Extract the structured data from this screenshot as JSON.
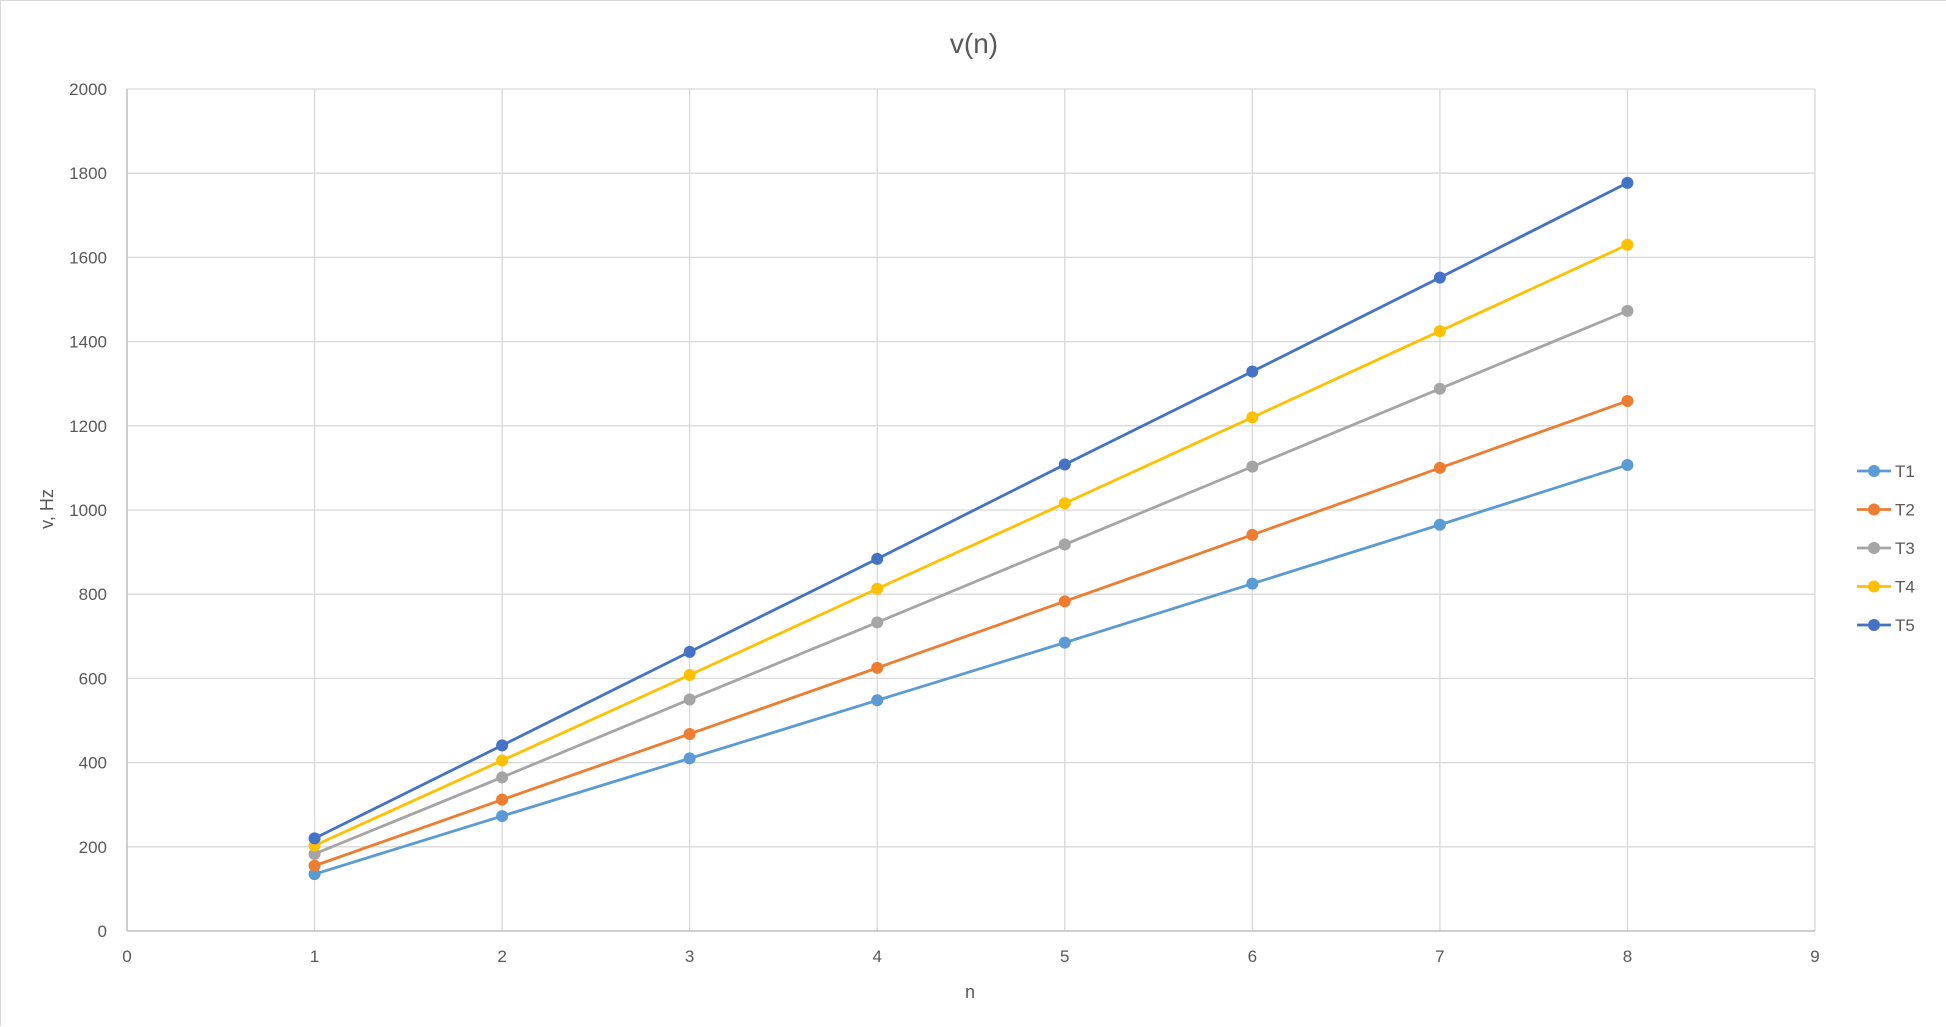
{
  "chart_data": {
    "type": "line",
    "title": "v(n)",
    "xlabel": "n",
    "ylabel": "v, Hz",
    "xlim": [
      0,
      9
    ],
    "ylim": [
      0,
      2000
    ],
    "x_ticks": [
      0,
      1,
      2,
      3,
      4,
      5,
      6,
      7,
      8,
      9
    ],
    "y_ticks": [
      0,
      200,
      400,
      600,
      800,
      1000,
      1200,
      1400,
      1600,
      1800,
      2000
    ],
    "grid": true,
    "legend_position": "right",
    "markers": "circle",
    "x": [
      1,
      2,
      3,
      4,
      5,
      6,
      7,
      8
    ],
    "series": [
      {
        "name": "T1",
        "color": "#5b9bd5",
        "values": [
          135,
          273,
          410,
          548,
          685,
          825,
          965,
          1107
        ]
      },
      {
        "name": "T2",
        "color": "#ed7d31",
        "values": [
          155,
          312,
          468,
          625,
          783,
          941,
          1100,
          1259
        ]
      },
      {
        "name": "T3",
        "color": "#a5a5a5",
        "values": [
          183,
          365,
          550,
          733,
          918,
          1103,
          1288,
          1473
        ]
      },
      {
        "name": "T4",
        "color": "#ffc000",
        "values": [
          203,
          405,
          608,
          813,
          1016,
          1220,
          1425,
          1630
        ]
      },
      {
        "name": "T5",
        "color": "#4472c4",
        "values": [
          220,
          441,
          663,
          884,
          1108,
          1329,
          1552,
          1777
        ]
      }
    ]
  }
}
